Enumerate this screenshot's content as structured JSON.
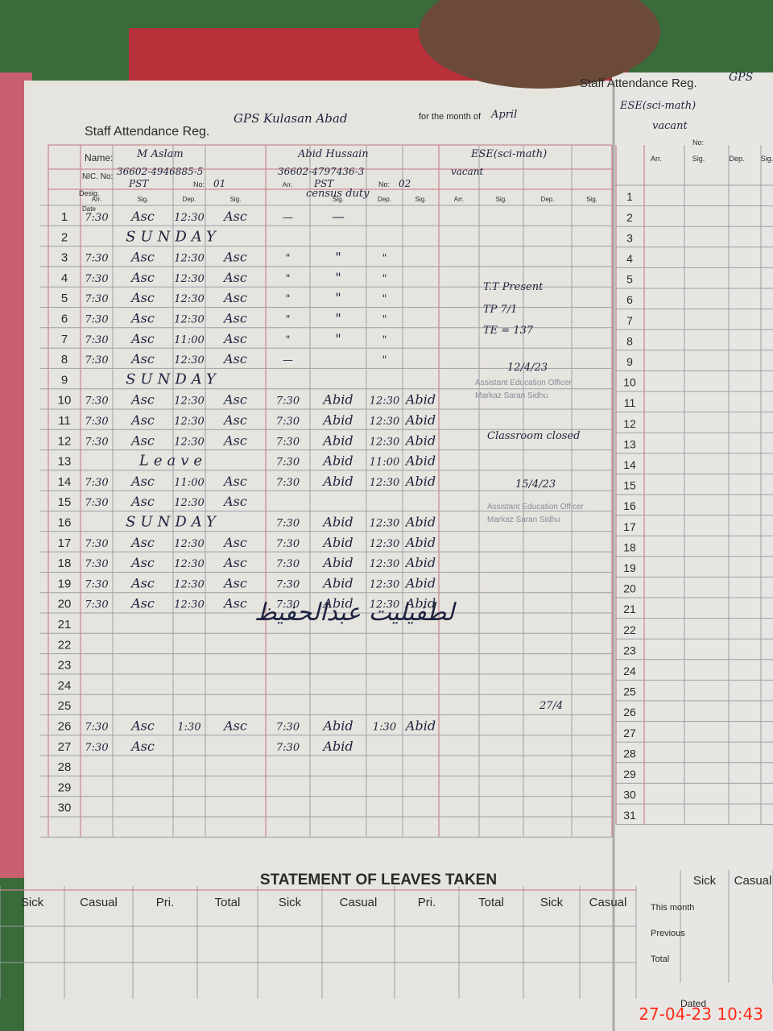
{
  "left_page": {
    "header": {
      "title": "Staff Attendance Reg.",
      "school": "GPS Kulasan Abad",
      "month_label": "for the month of",
      "month": "April"
    },
    "labels": {
      "name": "Name:",
      "nic": "NIC. No:",
      "desig": "Desig.",
      "no": "No:",
      "date": "Date",
      "arr": "Arr.",
      "sig": "Sig.",
      "dep": "Dep."
    },
    "staff": [
      {
        "name": "M Aslam",
        "nic": "36602-4946885-5",
        "desig": "PST",
        "no": "01"
      },
      {
        "name": "Abid Hussain",
        "nic": "36602-4797436-3",
        "desig": "PST",
        "no": "02",
        "remark": "census duty"
      },
      {
        "name": "ESE(sci-math)",
        "nic": "vacant"
      }
    ],
    "rows": [
      {
        "date": "1",
        "s1": [
          "7:30",
          "Asc",
          "12:30",
          "Asc"
        ],
        "s2": [
          "—",
          "—",
          null,
          null
        ]
      },
      {
        "date": "2",
        "note": "SUNDAY"
      },
      {
        "date": "3",
        "s1": [
          "7:30",
          "Asc",
          "12:30",
          "Asc"
        ],
        "s2": [
          "\"",
          "\"",
          "\"",
          null
        ]
      },
      {
        "date": "4",
        "s1": [
          "7:30",
          "Asc",
          "12:30",
          "Asc"
        ],
        "s2": [
          "\"",
          "\"",
          "\"",
          null
        ]
      },
      {
        "date": "5",
        "s1": [
          "7:30",
          "Asc",
          "12:30",
          "Asc"
        ],
        "s2": [
          "\"",
          "\"",
          "\"",
          null
        ]
      },
      {
        "date": "6",
        "s1": [
          "7:30",
          "Asc",
          "12:30",
          "Asc"
        ],
        "s2": [
          "\"",
          "\"",
          "\"",
          null
        ]
      },
      {
        "date": "7",
        "s1": [
          "7:30",
          "Asc",
          "11:00",
          "Asc"
        ],
        "s2": [
          "\"",
          "\"",
          "\"",
          null
        ]
      },
      {
        "date": "8",
        "s1": [
          "7:30",
          "Asc",
          "12:30",
          "Asc"
        ],
        "s2": [
          "—",
          null,
          "\"",
          null
        ]
      },
      {
        "date": "9",
        "note": "SUNDAY"
      },
      {
        "date": "10",
        "s1": [
          "7:30",
          "Asc",
          "12:30",
          "Asc"
        ],
        "s2": [
          "7:30",
          "Abid",
          "12:30",
          "Abid"
        ]
      },
      {
        "date": "11",
        "s1": [
          "7:30",
          "Asc",
          "12:30",
          "Asc"
        ],
        "s2": [
          "7:30",
          "Abid",
          "12:30",
          "Abid"
        ]
      },
      {
        "date": "12",
        "s1": [
          "7:30",
          "Asc",
          "12:30",
          "Asc"
        ],
        "s2": [
          "7:30",
          "Abid",
          "12:30",
          "Abid"
        ]
      },
      {
        "date": "13",
        "note": "Leave",
        "s2": [
          "7:30",
          "Abid",
          "11:00",
          "Abid"
        ]
      },
      {
        "date": "14",
        "s1": [
          "7:30",
          "Asc",
          "11:00",
          "Asc"
        ],
        "s2": [
          "7:30",
          "Abid",
          "12:30",
          "Abid"
        ]
      },
      {
        "date": "15",
        "s1": [
          "7:30",
          "Asc",
          "12:30",
          "Asc"
        ]
      },
      {
        "date": "16",
        "note": "SUNDAY",
        "s2": [
          "7:30",
          "Abid",
          "12:30",
          "Abid"
        ]
      },
      {
        "date": "17",
        "s1": [
          "7:30",
          "Asc",
          "12:30",
          "Asc"
        ],
        "s2": [
          "7:30",
          "Abid",
          "12:30",
          "Abid"
        ]
      },
      {
        "date": "18",
        "s1": [
          "7:30",
          "Asc",
          "12:30",
          "Asc"
        ],
        "s2": [
          "7:30",
          "Abid",
          "12:30",
          "Abid"
        ]
      },
      {
        "date": "19",
        "s1": [
          "7:30",
          "Asc",
          "12:30",
          "Asc"
        ],
        "s2": [
          "7:30",
          "Abid",
          "12:30",
          "Abid"
        ]
      },
      {
        "date": "20",
        "s1": [
          "7:30",
          "Asc",
          "12:30",
          "Asc"
        ],
        "s2": [
          "7:30",
          "Abid",
          "12:30",
          "Abid"
        ]
      },
      {
        "date": "21"
      },
      {
        "date": "22"
      },
      {
        "date": "23"
      },
      {
        "date": "24"
      },
      {
        "date": "25"
      },
      {
        "date": "26",
        "s1": [
          "7:30",
          "Asc",
          "1:30",
          "Asc"
        ],
        "s2": [
          "7:30",
          "Abid",
          "1:30",
          "Abid"
        ]
      },
      {
        "date": "27",
        "s1": [
          "7:30",
          "Asc",
          null,
          null
        ],
        "s2": [
          "7:30",
          "Abid",
          null,
          null
        ]
      },
      {
        "date": "28"
      },
      {
        "date": "29"
      },
      {
        "date": "30"
      }
    ],
    "margin_notes": [
      "T.T Present",
      "TP 7/1",
      "TE = 137",
      "12/4/23",
      "Assistant Education Officer",
      "Markaz Saran Sidhu",
      "Classroom closed",
      "15/4/23",
      "Assistant Education Officer",
      "Markaz Saran Sidhu",
      "27/4"
    ],
    "urdu_note": "لطفیلیت عبدالحفیظ"
  },
  "right_page": {
    "header": {
      "title": "Staff Attendance Reg.",
      "school": "GPS"
    },
    "staff": {
      "name": "ESE(sci-math)",
      "status": "vacant"
    },
    "dates": [
      "1",
      "2",
      "3",
      "4",
      "5",
      "6",
      "7",
      "8",
      "9",
      "10",
      "11",
      "12",
      "13",
      "14",
      "15",
      "16",
      "17",
      "18",
      "19",
      "20",
      "21",
      "22",
      "23",
      "24",
      "25",
      "26",
      "27",
      "28",
      "29",
      "30",
      "31"
    ]
  },
  "footer": {
    "title": "STATEMENT OF LEAVES TAKEN",
    "columns": [
      "Sick",
      "Casual",
      "Pri.",
      "Total",
      "Sick",
      "Casual",
      "Pri.",
      "Total",
      "Sick",
      "Casual"
    ],
    "right_columns": [
      "Sick",
      "Casual"
    ],
    "right_rows": [
      "This month",
      "Previous",
      "Total"
    ],
    "dated": "Dated"
  },
  "timestamp": "27-04-23  10:43"
}
